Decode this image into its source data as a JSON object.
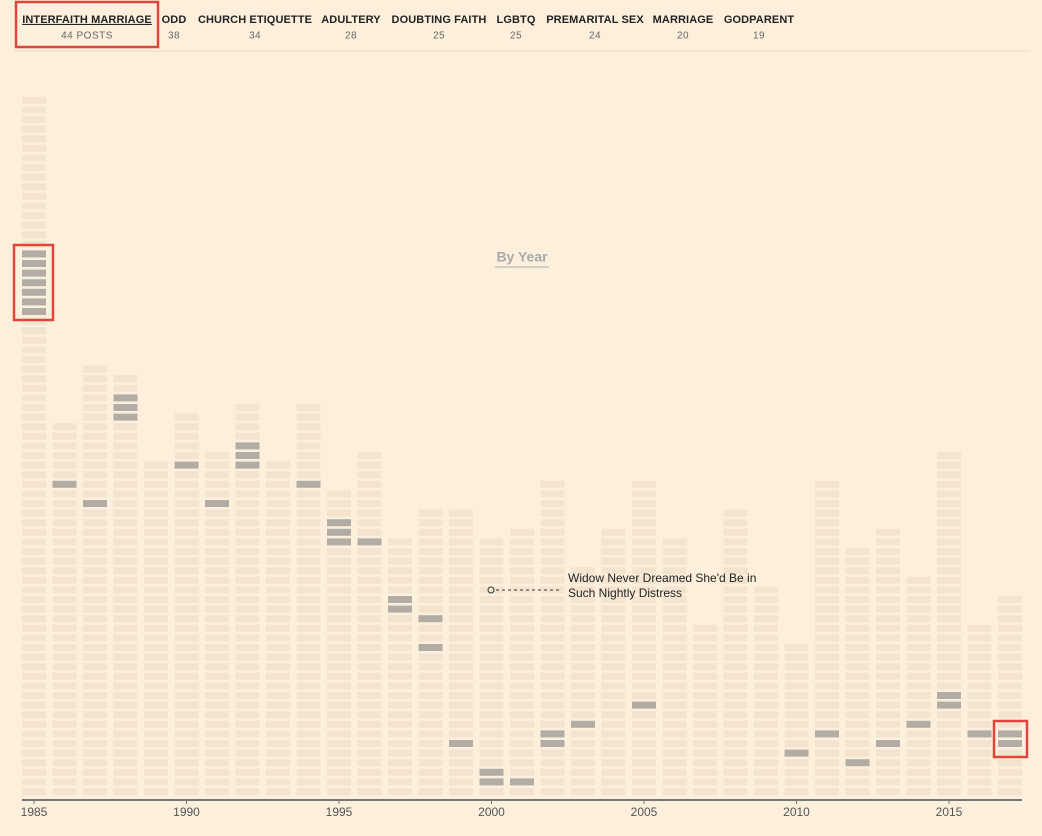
{
  "tabs": [
    {
      "label": "INTERFAITH MARRIAGE",
      "count": "44 POSTS"
    },
    {
      "label": "ODD",
      "count": 38
    },
    {
      "label": "CHURCH ETIQUETTE",
      "count": 34
    },
    {
      "label": "ADULTERY",
      "count": 28
    },
    {
      "label": "DOUBTING FAITH",
      "count": 25
    },
    {
      "label": "LGBTQ",
      "count": 25
    },
    {
      "label": "PREMARITAL SEX",
      "count": 24
    },
    {
      "label": "MARRIAGE",
      "count": 20
    },
    {
      "label": "GODPARENT",
      "count": 19
    }
  ],
  "view_link": "By Year",
  "chart_data": {
    "type": "unit-column",
    "x": [
      1985,
      1986,
      1987,
      1988,
      1989,
      1990,
      1991,
      1992,
      1993,
      1994,
      1995,
      1996,
      1997,
      1998,
      1999,
      2000,
      2001,
      2002,
      2003,
      2004,
      2005,
      2006,
      2007,
      2008,
      2009,
      2010,
      2011,
      2012,
      2013,
      2014,
      2015,
      2016,
      2017
    ],
    "values": [
      73,
      39,
      45,
      44,
      35,
      40,
      36,
      41,
      35,
      41,
      32,
      36,
      27,
      30,
      30,
      27,
      28,
      33,
      24,
      28,
      33,
      27,
      18,
      30,
      22,
      16,
      33,
      26,
      28,
      23,
      36,
      18,
      21
    ],
    "highlight_rows": [
      [
        50,
        51,
        52,
        53,
        54,
        55,
        56
      ],
      [
        32
      ],
      [
        30
      ],
      [
        39,
        40,
        41
      ],
      [],
      [
        34
      ],
      [
        30
      ],
      [
        34,
        35,
        36
      ],
      [],
      [
        32
      ],
      [
        26,
        27,
        28
      ],
      [
        26
      ],
      [
        19,
        20
      ],
      [
        15,
        18
      ],
      [
        5
      ],
      [
        1,
        2
      ],
      [
        1
      ],
      [
        5,
        6
      ],
      [
        7
      ],
      [],
      [
        9
      ],
      [],
      [],
      [],
      [],
      [
        4
      ],
      [
        6
      ],
      [
        3
      ],
      [
        5
      ],
      [
        7
      ],
      [
        9,
        10
      ],
      [
        6
      ],
      [
        5,
        6
      ]
    ],
    "cell_color": "#f3e3cf",
    "highlight_color": "#b2aca5",
    "xlim": [
      1985,
      2017
    ],
    "xticks": [
      1985,
      1990,
      1995,
      2000,
      2005,
      2010,
      2015
    ],
    "annotation": {
      "lines": [
        "Widow Never Dreamed She'd Be in",
        "Such Nightly Distress"
      ]
    }
  }
}
